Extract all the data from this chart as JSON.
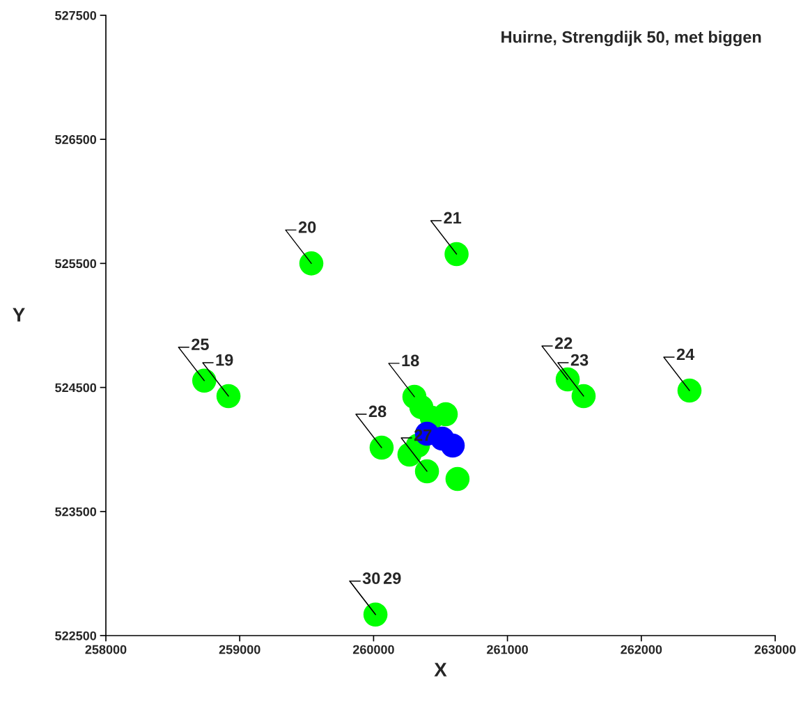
{
  "chart_data": {
    "type": "scatter",
    "title": "Huirne, Strengdijk 50, met biggen",
    "xlabel": "X",
    "ylabel": "Y",
    "xlim": [
      258000,
      263000
    ],
    "xticks": [
      258000,
      259000,
      260000,
      261000,
      262000,
      263000
    ],
    "ylim": [
      522500,
      527500
    ],
    "yticks": [
      522500,
      523500,
      524500,
      525500,
      526500,
      527500
    ],
    "grid": false,
    "legend": false,
    "marker": "circle",
    "series": [
      {
        "color": "#00ff00",
        "x": [
          259535,
          260620,
          258735,
          258916,
          261450,
          261569,
          262360,
          260060,
          260014,
          260268,
          260399,
          260627,
          260331,
          260305,
          260357,
          260435,
          260539
        ],
        "values": [
          525500,
          525575,
          524555,
          524430,
          524565,
          524430,
          524475,
          524015,
          522670,
          523959,
          523824,
          523762,
          524032,
          524425,
          524341,
          524256,
          524284
        ]
      },
      {
        "color": "#0000ff",
        "x": [
          260399,
          260513,
          260591
        ],
        "values": [
          524127,
          524088,
          524032
        ]
      }
    ],
    "annotations": [
      {
        "text": "20",
        "x": 259535,
        "y": 525500
      },
      {
        "text": "21",
        "x": 260620,
        "y": 525575
      },
      {
        "text": "25",
        "x": 258735,
        "y": 524555
      },
      {
        "text": "19",
        "x": 258916,
        "y": 524430
      },
      {
        "text": "22",
        "x": 261450,
        "y": 524565
      },
      {
        "text": "23",
        "x": 261569,
        "y": 524430
      },
      {
        "text": "24",
        "x": 262360,
        "y": 524475
      },
      {
        "text": "28",
        "x": 260060,
        "y": 524015
      },
      {
        "text": "30",
        "x": 260014,
        "y": 522670
      },
      {
        "text": "29",
        "x": 260014,
        "y": 522670
      },
      {
        "text": "18",
        "x": 260305,
        "y": 524425
      },
      {
        "text": "27",
        "x": 260399,
        "y": 523824
      }
    ]
  }
}
